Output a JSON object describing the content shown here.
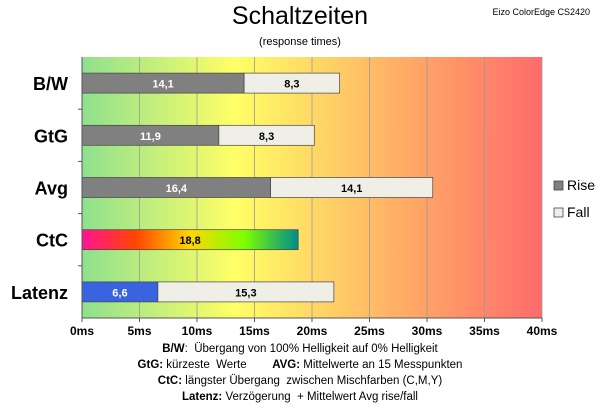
{
  "title": "Schaltzeiten",
  "subtitle": "(response times)",
  "model": "Eizo ColorEdge CS2420",
  "chart_data": {
    "type": "bar",
    "orientation": "horizontal",
    "stacked": true,
    "categories": [
      "B/W",
      "GtG",
      "Avg",
      "CtC",
      "Latenz"
    ],
    "series": [
      {
        "name": "Rise",
        "values": [
          14.1,
          11.9,
          16.4,
          18.8,
          6.6
        ],
        "labels": [
          "14,1",
          "11,9",
          "16,4",
          "18,8",
          "6,6"
        ]
      },
      {
        "name": "Fall",
        "values": [
          8.3,
          8.3,
          14.1,
          null,
          15.3
        ],
        "labels": [
          "8,3",
          "8,3",
          "14,1",
          "",
          "15,3"
        ]
      }
    ],
    "xticks": [
      "0ms",
      "5ms",
      "10ms",
      "15ms",
      "20ms",
      "25ms",
      "30ms",
      "35ms",
      "40ms"
    ],
    "xlim": [
      0,
      40
    ],
    "grid": true,
    "legend_position": "right",
    "colors": {
      "rise": "#808080",
      "fall": "#efefe7",
      "ctc_gradient": [
        "#ff1493",
        "#ff4500",
        "#ffd700",
        "#7fff00",
        "#008b8b"
      ],
      "latenz_rise": "#3a63e0",
      "background_gradient": [
        "#8fe08f",
        "#ffff66",
        "#ffb366",
        "#ff6b6b"
      ]
    }
  },
  "footnotes": [
    [
      {
        "b": "B/W",
        "t": ":  Übergang von 100% Helligkeit auf 0% Helligkeit"
      }
    ],
    [
      {
        "b": "GtG:",
        "t": " kürzeste  Werte        "
      },
      {
        "b": "AVG:",
        "t": " Mittelwerte an 15 Messpunkten"
      }
    ],
    [
      {
        "b": "CtC:",
        "t": " längster Übergang  zwischen Mischfarben (C,M,Y)"
      }
    ],
    [
      {
        "b": "Latenz:",
        "t": " Verzögerung  + Mittelwert Avg rise/fall"
      }
    ]
  ]
}
